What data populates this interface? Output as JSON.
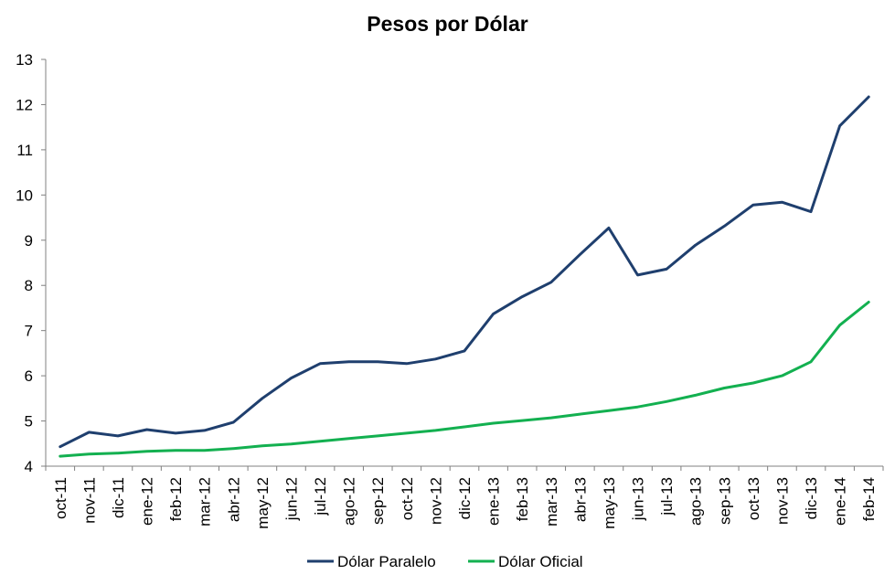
{
  "chart_data": {
    "type": "line",
    "title": "Pesos por Dólar",
    "xlabel": "",
    "ylabel": "",
    "categories": [
      "oct-11",
      "nov-11",
      "dic-11",
      "ene-12",
      "feb-12",
      "mar-12",
      "abr-12",
      "may-12",
      "jun-12",
      "jul-12",
      "ago-12",
      "sep-12",
      "oct-12",
      "nov-12",
      "dic-12",
      "ene-13",
      "feb-13",
      "mar-13",
      "abr-13",
      "may-13",
      "jun-13",
      "jul-13",
      "ago-13",
      "sep-13",
      "oct-13",
      "nov-13",
      "dic-13",
      "ene-14",
      "feb-14"
    ],
    "ylim": [
      4,
      13
    ],
    "yticks": [
      4,
      5,
      6,
      7,
      8,
      9,
      10,
      11,
      12,
      13
    ],
    "grid": false,
    "legend_position": "bottom",
    "series": [
      {
        "name": "Dólar Paralelo",
        "color": "#1f3f6e",
        "values": [
          4.43,
          4.75,
          4.67,
          4.81,
          4.73,
          4.79,
          4.97,
          5.5,
          5.95,
          6.27,
          6.31,
          6.31,
          6.27,
          6.37,
          6.55,
          7.37,
          7.75,
          8.07,
          8.68,
          9.27,
          8.23,
          8.36,
          8.89,
          9.31,
          9.78,
          9.84,
          9.63,
          11.53,
          12.17
        ]
      },
      {
        "name": "Dólar Oficial",
        "color": "#13b050",
        "values": [
          4.22,
          4.27,
          4.29,
          4.33,
          4.35,
          4.35,
          4.39,
          4.45,
          4.49,
          4.55,
          4.61,
          4.67,
          4.73,
          4.79,
          4.87,
          4.95,
          5.01,
          5.07,
          5.15,
          5.23,
          5.31,
          5.43,
          5.57,
          5.73,
          5.84,
          6.0,
          6.31,
          7.12,
          7.63
        ]
      }
    ]
  }
}
